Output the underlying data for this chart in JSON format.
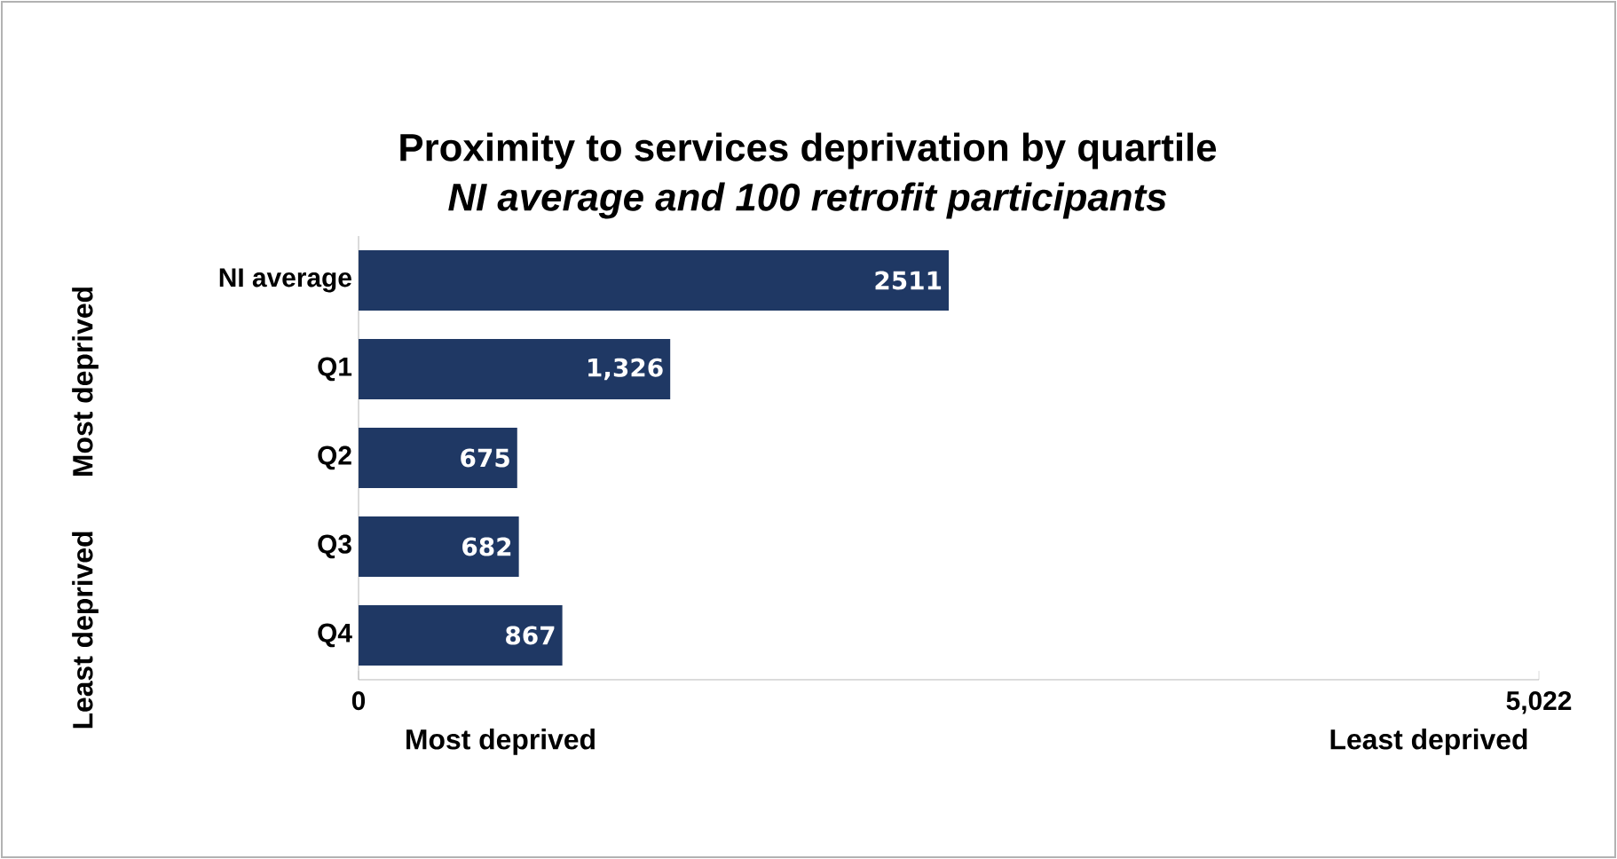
{
  "chart_data": {
    "type": "bar",
    "orientation": "horizontal",
    "title": "Proximity to services deprivation by quartile",
    "subtitle": "NI average and 100 retrofit participants",
    "categories": [
      "NI average",
      "Q1",
      "Q2",
      "Q3",
      "Q4"
    ],
    "values": [
      2511,
      1326,
      675,
      682,
      867
    ],
    "value_labels": [
      "2511",
      "1,326",
      "675",
      "682",
      "867"
    ],
    "color": "#1f3864",
    "xlim": [
      0,
      5022
    ],
    "xticks": [
      0,
      {
        "value": 5022,
        "label": "5,022"
      }
    ],
    "annotations": [
      "Most deprived",
      "Least deprived",
      "Most deprived",
      "Least deprived"
    ]
  }
}
